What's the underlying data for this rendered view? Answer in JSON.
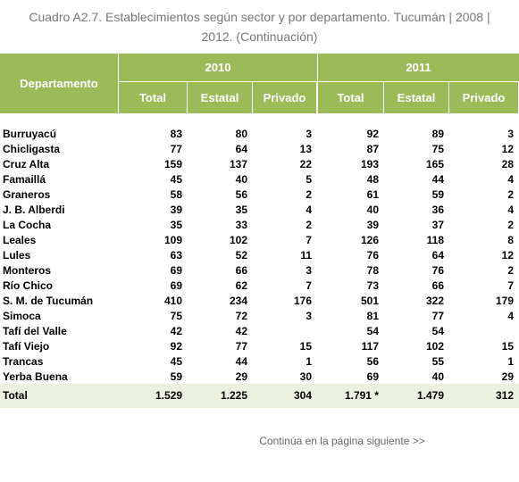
{
  "title": "Cuadro A2.7. Establecimientos según sector y por departamento. Tucumán | 2008 | 2012. (Continuación)",
  "table": {
    "header": {
      "first": "Departamento",
      "groups": [
        "2010",
        "2011"
      ],
      "columns": [
        "Total",
        "Estatal",
        "Privado",
        "Total",
        "Estatal",
        "Privado"
      ]
    },
    "rows": [
      [
        "Burruyacú",
        "83",
        "80",
        "3",
        "92",
        "89",
        "3"
      ],
      [
        "Chicligasta",
        "77",
        "64",
        "13",
        "87",
        "75",
        "12"
      ],
      [
        "Cruz Alta",
        "159",
        "137",
        "22",
        "193",
        "165",
        "28"
      ],
      [
        "Famaillá",
        "45",
        "40",
        "5",
        "48",
        "44",
        "4"
      ],
      [
        "Graneros",
        "58",
        "56",
        "2",
        "61",
        "59",
        "2"
      ],
      [
        "J. B. Alberdi",
        "39",
        "35",
        "4",
        "40",
        "36",
        "4"
      ],
      [
        "La Cocha",
        "35",
        "33",
        "2",
        "39",
        "37",
        "2"
      ],
      [
        "Leales",
        "109",
        "102",
        "7",
        "126",
        "118",
        "8"
      ],
      [
        "Lules",
        "63",
        "52",
        "11",
        "76",
        "64",
        "12"
      ],
      [
        "Monteros",
        "69",
        "66",
        "3",
        "78",
        "76",
        "2"
      ],
      [
        "Río Chico",
        "69",
        "62",
        "7",
        "73",
        "66",
        "7"
      ],
      [
        "S. M. de Tucumán",
        "410",
        "234",
        "176",
        "501",
        "322",
        "179"
      ],
      [
        "Simoca",
        "75",
        "72",
        "3",
        "81",
        "77",
        "4"
      ],
      [
        "Tafí del Valle",
        "42",
        "42",
        null,
        "54",
        "54",
        null
      ],
      [
        "Tafí Viejo",
        "92",
        "77",
        "15",
        "117",
        "102",
        "15"
      ],
      [
        "Trancas",
        "45",
        "44",
        "1",
        "56",
        "55",
        "1"
      ],
      [
        "Yerba Buena",
        "59",
        "29",
        "30",
        "69",
        "40",
        "29"
      ]
    ],
    "total": [
      "Total",
      "1.529",
      "1.225",
      "304",
      "1.791 *",
      "1.479",
      "312"
    ]
  },
  "footer": "Continúa en la página siguiente >>"
}
